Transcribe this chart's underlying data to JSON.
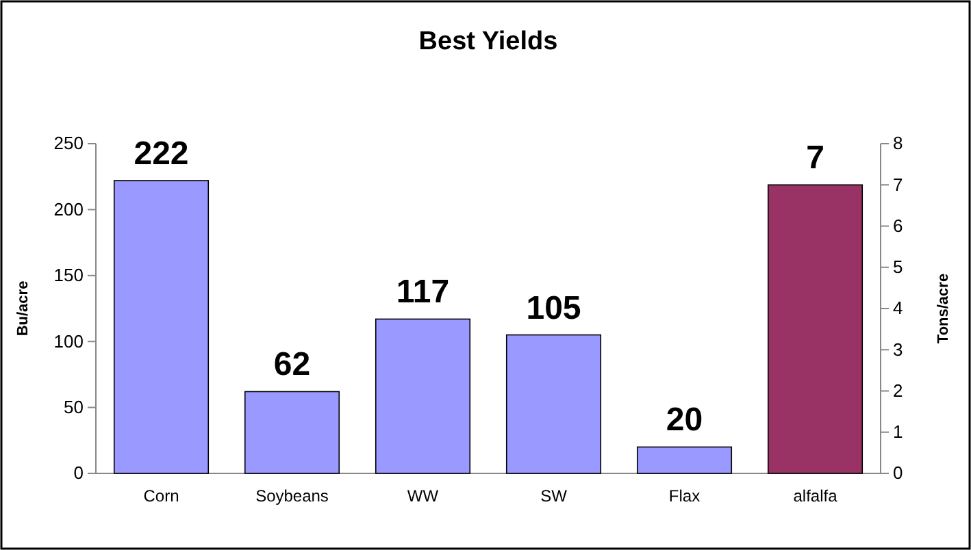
{
  "chart_data": {
    "type": "bar",
    "title": "Best Yields",
    "ylabel": "Bu/acre",
    "y2label": "Tons/acre",
    "categories": [
      "Corn",
      "Soybeans",
      "WW",
      "SW",
      "Flax",
      "alfalfa"
    ],
    "series": [
      {
        "color": "#9999ff",
        "values": [
          222,
          62,
          117,
          105,
          20,
          null
        ]
      },
      {
        "color": "#993366",
        "values": [
          null,
          null,
          null,
          null,
          null,
          7
        ],
        "axis": "y2"
      }
    ],
    "ylim": [
      0,
      250
    ],
    "yticks": [
      0,
      50,
      100,
      150,
      200,
      250
    ],
    "y2lim": [
      0,
      8
    ],
    "y2ticks": [
      0,
      1,
      2,
      3,
      4,
      5,
      6,
      7,
      8
    ],
    "data_labels": true,
    "grid": false
  }
}
